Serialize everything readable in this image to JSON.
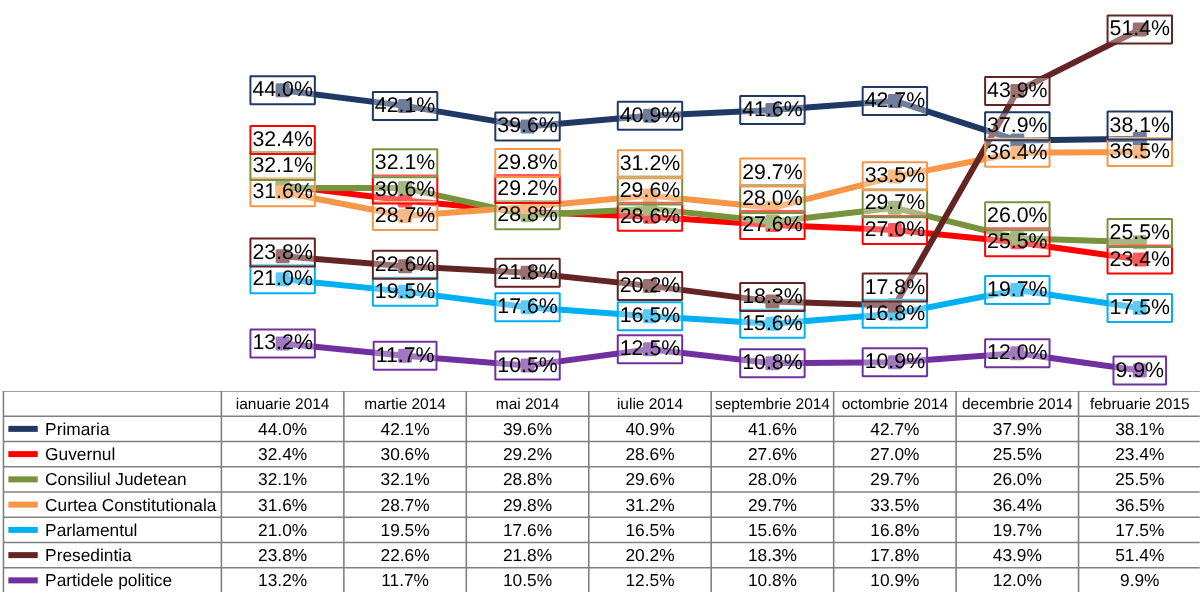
{
  "chart_data": {
    "type": "line",
    "categories": [
      "ianuarie 2014",
      "martie 2014",
      "mai 2014",
      "iulie 2014",
      "septembrie 2014",
      "octombrie 2014",
      "decembrie 2014",
      "februarie 2015"
    ],
    "series": [
      {
        "name": "Primaria",
        "color": "#1f3864",
        "values": [
          44.0,
          42.1,
          39.6,
          40.9,
          41.6,
          42.7,
          37.9,
          38.1
        ],
        "value_labels": [
          "44.0%",
          "42.1%",
          "39.6%",
          "40.9%",
          "41.6%",
          "42.7%",
          "37.9%",
          "38.1%"
        ]
      },
      {
        "name": "Guvernul",
        "color": "#ff0000",
        "values": [
          32.4,
          30.6,
          29.2,
          28.6,
          27.6,
          27.0,
          25.5,
          23.4
        ],
        "value_labels": [
          "32.4%",
          "30.6%",
          "29.2%",
          "28.6%",
          "27.6%",
          "27.0%",
          "25.5%",
          "23.4%"
        ]
      },
      {
        "name": "Consiliul Judetean",
        "color": "#77933c",
        "values": [
          32.1,
          32.1,
          28.8,
          29.6,
          28.0,
          29.7,
          26.0,
          25.5
        ],
        "value_labels": [
          "32.1%",
          "32.1%",
          "28.8%",
          "29.6%",
          "28.0%",
          "29.7%",
          "26.0%",
          "25.5%"
        ]
      },
      {
        "name": "Curtea Constitutionala",
        "color": "#f79646",
        "values": [
          31.6,
          28.7,
          29.8,
          31.2,
          29.7,
          33.5,
          36.4,
          36.5
        ],
        "value_labels": [
          "31.6%",
          "28.7%",
          "29.8%",
          "31.2%",
          "29.7%",
          "33.5%",
          "36.4%",
          "36.5%"
        ]
      },
      {
        "name": "Parlamentul",
        "color": "#00b0f0",
        "values": [
          21.0,
          19.5,
          17.6,
          16.5,
          15.6,
          16.8,
          19.7,
          17.5
        ],
        "value_labels": [
          "21.0%",
          "19.5%",
          "17.6%",
          "16.5%",
          "15.6%",
          "16.8%",
          "19.7%",
          "17.5%"
        ]
      },
      {
        "name": "Presedintia",
        "color": "#632523",
        "values": [
          23.8,
          22.6,
          21.8,
          20.2,
          18.3,
          17.8,
          43.9,
          51.4
        ],
        "value_labels": [
          "23.8%",
          "22.6%",
          "21.8%",
          "20.2%",
          "18.3%",
          "17.8%",
          "43.9%",
          "51.4%"
        ]
      },
      {
        "name": "Partidele politice",
        "color": "#7030a0",
        "values": [
          13.2,
          11.7,
          10.5,
          12.5,
          10.8,
          10.9,
          12.0,
          9.9
        ],
        "value_labels": [
          "13.2%",
          "11.7%",
          "10.5%",
          "12.5%",
          "10.8%",
          "10.9%",
          "12.0%",
          "9.9%"
        ]
      }
    ],
    "legend": "bottom",
    "line_style": "solid",
    "marker": "square"
  }
}
